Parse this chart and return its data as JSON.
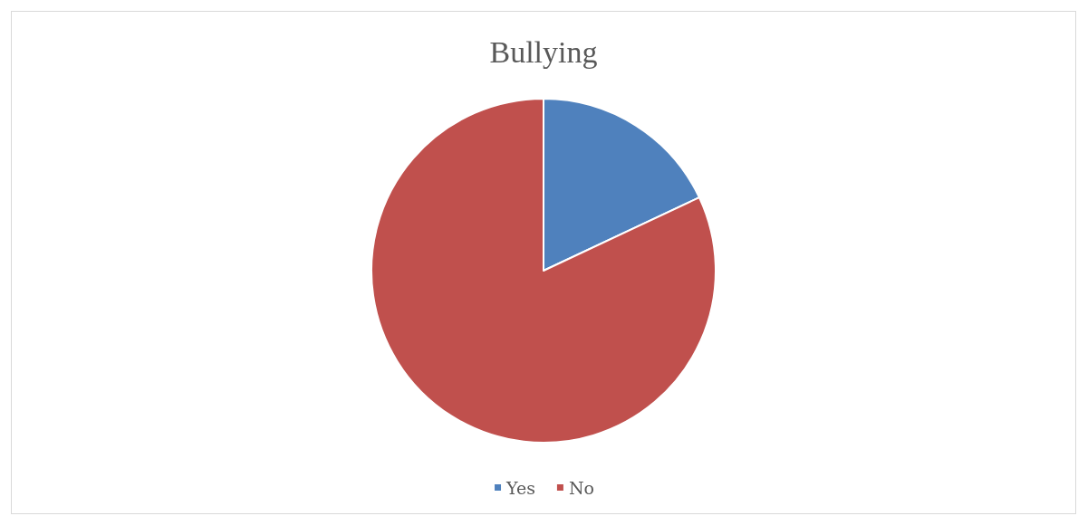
{
  "chart_data": {
    "type": "pie",
    "title": "Bullying",
    "categories": [
      "Yes",
      "No"
    ],
    "values": [
      18,
      82
    ],
    "colors": [
      "#4f81bd",
      "#c0504d"
    ],
    "legend": "bottom"
  }
}
